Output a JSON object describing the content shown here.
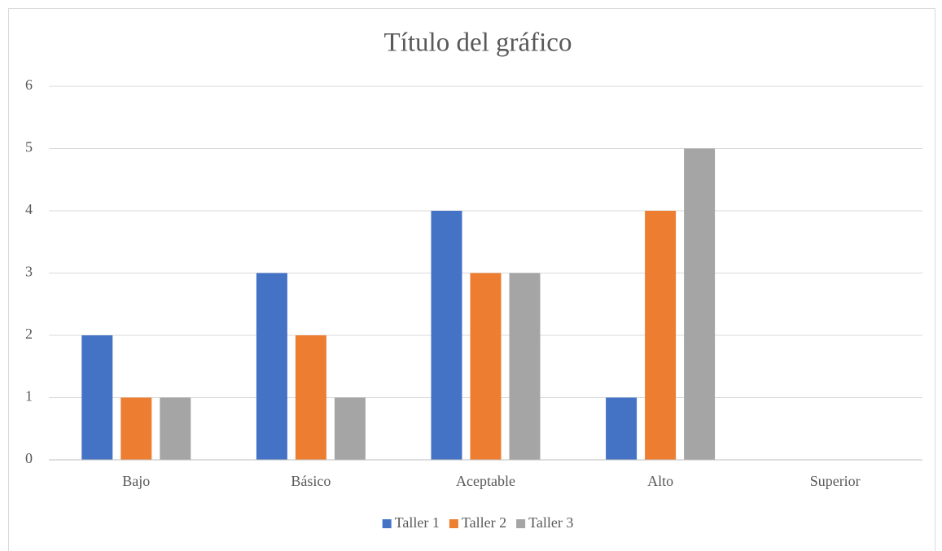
{
  "chart_data": {
    "type": "bar",
    "title": "Título del gráfico",
    "categories": [
      "Bajo",
      "Básico",
      "Aceptable",
      "Alto",
      "Superior"
    ],
    "series": [
      {
        "name": "Taller 1",
        "color": "#4472c4",
        "values": [
          2,
          3,
          4,
          1,
          0
        ]
      },
      {
        "name": "Taller 2",
        "color": "#ed7d31",
        "values": [
          1,
          2,
          3,
          4,
          0
        ]
      },
      {
        "name": "Taller 3",
        "color": "#a5a5a5",
        "values": [
          1,
          1,
          3,
          5,
          0
        ]
      }
    ],
    "ylim": [
      0,
      6
    ],
    "yticks": [
      0,
      1,
      2,
      3,
      4,
      5,
      6
    ],
    "grid": true,
    "legend": "bottom"
  }
}
